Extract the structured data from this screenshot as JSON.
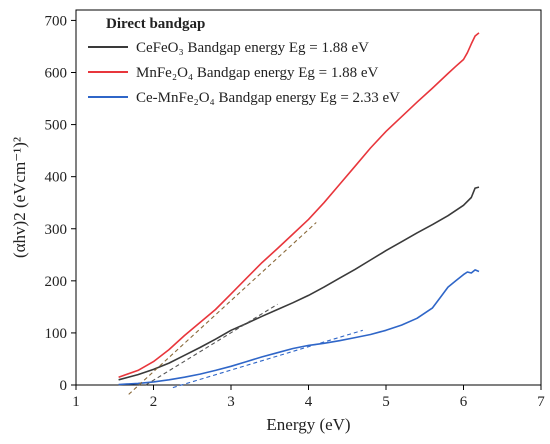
{
  "chart_data": {
    "type": "line",
    "xlabel": "Energy (eV)",
    "ylabel": "(αhv)2 (eVcm⁻¹)²",
    "xlim": [
      1,
      7
    ],
    "ylim": [
      0,
      720
    ],
    "x_ticks": [
      1,
      2,
      3,
      4,
      5,
      6,
      7
    ],
    "y_ticks": [
      0,
      100,
      200,
      300,
      400,
      500,
      600,
      700
    ],
    "grid": false,
    "legend": {
      "position": "top-left",
      "title": "Direct bandgap",
      "entries": [
        {
          "compound": "CeFeO₃",
          "text": "Bandgap energy Eg = 1.88 eV",
          "color": "#3a3a3a"
        },
        {
          "compound": "MnFe₂O₄",
          "text": "Bandgap energy Eg = 1.88 eV",
          "color": "#e8363c"
        },
        {
          "compound": "Ce-MnFe₂O₄",
          "text": "Bandgap energy Eg = 2.33 eV",
          "color": "#2f66c8"
        }
      ]
    },
    "series": [
      {
        "color": "#e8363c",
        "x": [
          1.55,
          1.8,
          2.0,
          2.2,
          2.4,
          2.6,
          2.8,
          3.0,
          3.2,
          3.4,
          3.6,
          3.8,
          4.0,
          4.2,
          4.4,
          4.6,
          4.8,
          5.0,
          5.2,
          5.4,
          5.6,
          5.8,
          5.9,
          6.0,
          6.05,
          6.1,
          6.15,
          6.2
        ],
        "y": [
          15,
          28,
          45,
          68,
          95,
          120,
          145,
          175,
          205,
          235,
          262,
          290,
          318,
          350,
          385,
          420,
          455,
          487,
          515,
          543,
          570,
          598,
          612,
          625,
          638,
          655,
          670,
          676
        ]
      },
      {
        "color": "#3a3a3a",
        "x": [
          1.55,
          1.8,
          2.0,
          2.2,
          2.4,
          2.6,
          2.8,
          3.0,
          3.2,
          3.4,
          3.6,
          3.8,
          4.0,
          4.2,
          4.4,
          4.6,
          4.8,
          5.0,
          5.2,
          5.4,
          5.6,
          5.8,
          6.0,
          6.1,
          6.15,
          6.2
        ],
        "y": [
          10,
          20,
          30,
          42,
          57,
          72,
          88,
          105,
          118,
          132,
          145,
          158,
          172,
          188,
          205,
          222,
          240,
          258,
          275,
          292,
          308,
          325,
          345,
          360,
          378,
          380
        ]
      },
      {
        "color": "#2f66c8",
        "x": [
          1.55,
          1.8,
          2.0,
          2.2,
          2.4,
          2.6,
          2.8,
          3.0,
          3.2,
          3.4,
          3.6,
          3.8,
          4.0,
          4.2,
          4.4,
          4.6,
          4.8,
          5.0,
          5.2,
          5.4,
          5.6,
          5.7,
          5.8,
          5.9,
          6.0,
          6.05,
          6.1,
          6.15,
          6.2
        ],
        "y": [
          1,
          3,
          6,
          10,
          15,
          21,
          28,
          36,
          45,
          54,
          62,
          70,
          76,
          80,
          85,
          91,
          97,
          105,
          115,
          128,
          148,
          168,
          188,
          200,
          212,
          217,
          215,
          221,
          218
        ]
      }
    ],
    "fit_lines": [
      {
        "color": "#8a6a3a",
        "x": [
          1.68,
          4.1
        ],
        "y": [
          -18,
          312
        ]
      },
      {
        "color": "#555555",
        "x": [
          1.9,
          3.6
        ],
        "y": [
          0,
          155
        ]
      },
      {
        "color": "#2f66c8",
        "x": [
          2.25,
          4.7
        ],
        "y": [
          -5,
          105
        ]
      }
    ]
  }
}
